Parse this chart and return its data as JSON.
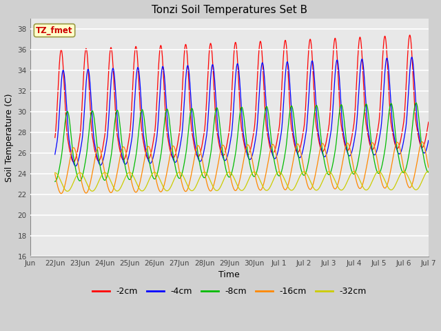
{
  "title": "Tonzi Soil Temperatures Set B",
  "xlabel": "Time",
  "ylabel": "Soil Temperature (C)",
  "ylim": [
    16,
    39
  ],
  "yticks": [
    16,
    18,
    20,
    22,
    24,
    26,
    28,
    30,
    32,
    34,
    36,
    38
  ],
  "legend_label": "TZ_fmet",
  "fig_facecolor": "#d0d0d0",
  "ax_facecolor": "#e8e8e8",
  "series_colors": [
    "#ff0000",
    "#0000ff",
    "#00bb00",
    "#ff8800",
    "#cccc00"
  ],
  "series_labels": [
    "-2cm",
    "-4cm",
    "-8cm",
    "-16cm",
    "-32cm"
  ],
  "num_days": 15,
  "params": [
    {
      "amp": 8.5,
      "phase": 0.0,
      "base": 27.5,
      "trend": 0.1,
      "sharp": 2.5
    },
    {
      "amp": 7.0,
      "phase": 0.08,
      "base": 27.0,
      "trend": 0.09,
      "sharp": 2.0
    },
    {
      "amp": 4.5,
      "phase": 0.25,
      "base": 25.5,
      "trend": 0.06,
      "sharp": 1.0
    },
    {
      "amp": 2.5,
      "phase": 0.5,
      "base": 24.0,
      "trend": 0.04,
      "sharp": 0.3
    },
    {
      "amp": 0.9,
      "phase": 0.75,
      "base": 23.2,
      "trend": 0.01,
      "sharp": 0.0
    }
  ],
  "num_points": 3000,
  "tick_labels_june": [
    "22",
    "23",
    "24",
    "25",
    "26",
    "27",
    "28",
    "29",
    "30"
  ],
  "tick_labels_july": [
    "1",
    "2",
    "3",
    "4",
    "5",
    "6",
    "7"
  ],
  "linewidth": 0.9
}
